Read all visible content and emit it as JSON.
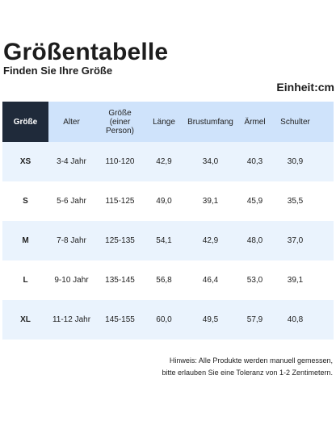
{
  "page": {
    "title": "Größentabelle",
    "subtitle": "Finden Sie Ihre Größe",
    "unit": "Einheit:cm"
  },
  "table": {
    "headers": {
      "size": "Größe",
      "age": "Alter",
      "height_line1": "Größe",
      "height_line2": "(einer Person)",
      "length": "Länge",
      "chest": "Brustumfang",
      "sleeve": "Ärmel",
      "shoulder": "Schulter"
    },
    "rows": [
      {
        "size": "XS",
        "age": "3-4 Jahr",
        "height": "110-120",
        "length": "42,9",
        "chest": "34,0",
        "sleeve": "40,3",
        "shoulder": "30,9"
      },
      {
        "size": "S",
        "age": "5-6 Jahr",
        "height": "115-125",
        "length": "49,0",
        "chest": "39,1",
        "sleeve": "45,9",
        "shoulder": "35,5"
      },
      {
        "size": "M",
        "age": "7-8 Jahr",
        "height": "125-135",
        "length": "54,1",
        "chest": "42,9",
        "sleeve": "48,0",
        "shoulder": "37,0"
      },
      {
        "size": "L",
        "age": "9-10 Jahr",
        "height": "135-145",
        "length": "56,8",
        "chest": "46,4",
        "sleeve": "53,0",
        "shoulder": "39,1"
      },
      {
        "size": "XL",
        "age": "11-12 Jahr",
        "height": "145-155",
        "length": "60,0",
        "chest": "49,5",
        "sleeve": "57,9",
        "shoulder": "40,8"
      }
    ]
  },
  "note": {
    "line1": "Hinweis: Alle Produkte werden manuell gemessen,",
    "line2": "bitte erlauben Sie eine Toleranz von 1-2 Zentimetern."
  },
  "colors": {
    "header_bg": "#cfe3fb",
    "first_header_bg": "#1f2a3a",
    "odd_row_bg": "#eaf3fd"
  }
}
